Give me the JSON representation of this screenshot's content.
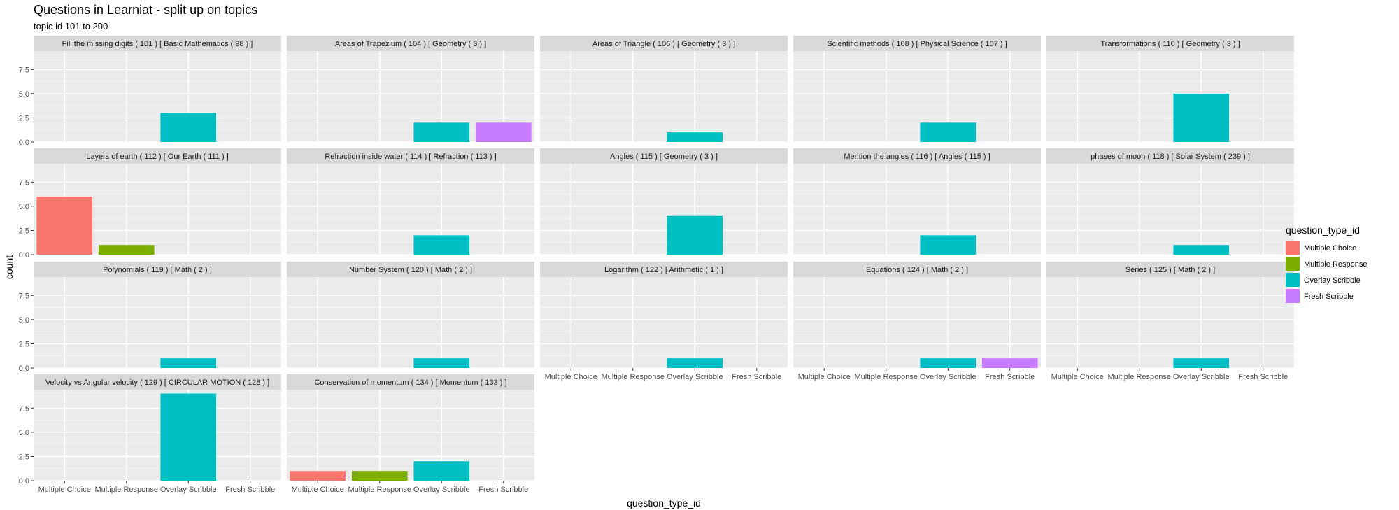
{
  "chart_data": {
    "type": "bar",
    "title": "Questions in Learniat - split up on topics",
    "subtitle": "topic id 101 to 200",
    "xlabel": "question_type_id",
    "ylabel": "count",
    "ylim": [
      0,
      9.4
    ],
    "yticks": [
      "0.0",
      "2.5",
      "5.0",
      "7.5"
    ],
    "ytick_values": [
      0,
      2.5,
      5,
      7.5
    ],
    "categories": [
      "Multiple Choice",
      "Multiple Response",
      "Overlay Scribble",
      "Fresh Scribble"
    ],
    "colors": {
      "Multiple Choice": "#F8766D",
      "Multiple Response": "#7CAE00",
      "Overlay Scribble": "#00BFC4",
      "Fresh Scribble": "#C77CFF"
    },
    "grid": true,
    "legend": {
      "title": "question_type_id",
      "position": "right",
      "items": [
        "Multiple Choice",
        "Multiple Response",
        "Overlay Scribble",
        "Fresh Scribble"
      ]
    },
    "panels": [
      {
        "label": "Fill the missing digits ( 101 ) [ Basic Mathematics ( 98 ) ]",
        "values": [
          0,
          0,
          3,
          0
        ]
      },
      {
        "label": "Areas of Trapezium ( 104 ) [ Geometry ( 3 ) ]",
        "values": [
          0,
          0,
          2,
          2
        ]
      },
      {
        "label": "Areas of Triangle ( 106 ) [ Geometry ( 3 ) ]",
        "values": [
          0,
          0,
          1,
          0
        ]
      },
      {
        "label": "Scientific methods ( 108 ) [ Physical Science ( 107 ) ]",
        "values": [
          0,
          0,
          2,
          0
        ]
      },
      {
        "label": "Transformations ( 110 ) [ Geometry ( 3 ) ]",
        "values": [
          0,
          0,
          5,
          0
        ]
      },
      {
        "label": "Layers of earth ( 112 ) [ Our Earth ( 111 ) ]",
        "values": [
          6,
          1,
          0,
          0
        ]
      },
      {
        "label": "Refraction inside water ( 114 ) [ Refraction ( 113 ) ]",
        "values": [
          0,
          0,
          2,
          0
        ]
      },
      {
        "label": "Angles ( 115 ) [ Geometry ( 3 ) ]",
        "values": [
          0,
          0,
          4,
          0
        ]
      },
      {
        "label": "Mention the angles ( 116 ) [ Angles ( 115 ) ]",
        "values": [
          0,
          0,
          2,
          0
        ]
      },
      {
        "label": "phases of moon ( 118 ) [ Solar System ( 239 ) ]",
        "values": [
          0,
          0,
          1,
          0
        ]
      },
      {
        "label": "Polynomials ( 119 ) [ Math ( 2 ) ]",
        "values": [
          0,
          0,
          1,
          0
        ]
      },
      {
        "label": "Number System ( 120 ) [ Math ( 2 ) ]",
        "values": [
          0,
          0,
          1,
          0
        ]
      },
      {
        "label": "Logarithm ( 122 ) [ Arithmetic ( 1 ) ]",
        "values": [
          0,
          0,
          1,
          0
        ]
      },
      {
        "label": "Equations ( 124 ) [ Math ( 2 ) ]",
        "values": [
          0,
          0,
          1,
          1
        ]
      },
      {
        "label": "Series ( 125 ) [ Math ( 2 ) ]",
        "values": [
          0,
          0,
          1,
          0
        ]
      },
      {
        "label": "Velocity vs Angular velocity ( 129 ) [ CIRCULAR MOTION ( 128 ) ]",
        "values": [
          0,
          0,
          9,
          0
        ]
      },
      {
        "label": "Conservation of momentum ( 134 ) [ Momentum ( 133 ) ]",
        "values": [
          1,
          1,
          2,
          0
        ]
      }
    ]
  }
}
